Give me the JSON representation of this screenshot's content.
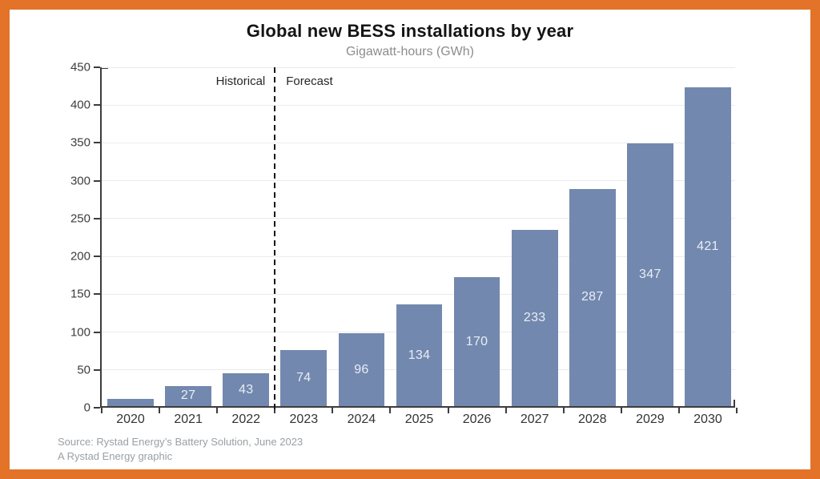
{
  "frame": {
    "border_color": "#E27329",
    "background_color": "#FFFFFF"
  },
  "chart_data": {
    "type": "bar",
    "title": "Global new BESS installations by year",
    "subtitle": "Gigawatt-hours (GWh)",
    "categories": [
      "2020",
      "2021",
      "2022",
      "2023",
      "2024",
      "2025",
      "2026",
      "2027",
      "2028",
      "2029",
      "2030"
    ],
    "values": [
      10,
      27,
      43,
      74,
      96,
      134,
      170,
      233,
      287,
      347,
      421
    ],
    "bar_labels": [
      "",
      "27",
      "43",
      "74",
      "96",
      "134",
      "170",
      "233",
      "287",
      "347",
      "421"
    ],
    "xlabel": "",
    "ylabel": "Gigawatt-hours (GWh)",
    "ylim": [
      0,
      450
    ],
    "ytick_step": 50,
    "ytick_labels": [
      "0",
      "50",
      "100",
      "150",
      "200",
      "250",
      "300",
      "350",
      "400",
      "450"
    ],
    "grid": "horizontal",
    "legend": "none",
    "bar_color": "#7388AE",
    "bar_label_color": "#E8EEF6",
    "grid_color": "#EBEBEB",
    "axis_color": "#3C3C3C",
    "divider_color": "#161616",
    "annotations": {
      "historical": "Historical",
      "forecast": "Forecast",
      "divider_between": [
        "2022",
        "2023"
      ]
    }
  },
  "source": {
    "line1": "Source: Rystad Energy’s Battery Solution, June 2023",
    "line2": "A Rystad Energy graphic"
  }
}
